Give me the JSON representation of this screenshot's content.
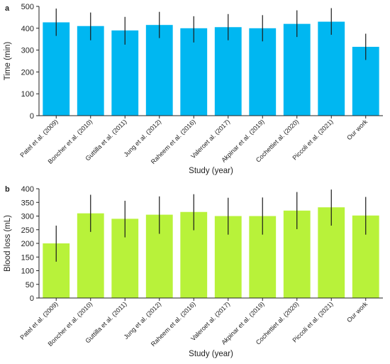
{
  "chart_data": [
    {
      "panel": "a",
      "type": "bar",
      "color": "#00b7f1",
      "categories": [
        "Patel et al. (2009)",
        "Boncher et al. (2010)",
        "Guttilla et al. (2011)",
        "Jung et al. (2012)",
        "Raheem et al. (2016)",
        "Valeroet al. (2017)",
        "Akpinar et al. (2019)",
        "Cochettiet al. (2020)",
        "Piccoli et al. (2021)",
        "Our work"
      ],
      "values": [
        427,
        410,
        390,
        415,
        400,
        405,
        400,
        420,
        430,
        315
      ],
      "error_low": [
        365,
        345,
        325,
        355,
        335,
        345,
        340,
        360,
        370,
        255
      ],
      "error_high": [
        490,
        472,
        452,
        475,
        455,
        465,
        460,
        482,
        492,
        375
      ],
      "xlabel": "Study (year)",
      "ylabel": "Time (min)",
      "ylim": [
        0,
        500
      ],
      "yticks": [
        0,
        100,
        200,
        300,
        400,
        500
      ]
    },
    {
      "panel": "b",
      "type": "bar",
      "color": "#b8f23a",
      "categories": [
        "Patel et al. (2009)",
        "Boncher et al. (2010)",
        "Guttilla et al. (2011)",
        "Jung et al. (2012)",
        "Raheem et al. (2016)",
        "Valeroet al. (2017)",
        "Akpinar et al. (2019)",
        "Cochettiet al. (2020)",
        "Piccoli et al. (2021)",
        "Our work"
      ],
      "values": [
        200,
        310,
        290,
        305,
        315,
        300,
        300,
        320,
        332,
        302
      ],
      "error_low": [
        133,
        242,
        222,
        235,
        248,
        232,
        232,
        252,
        265,
        232
      ],
      "error_high": [
        265,
        378,
        356,
        372,
        380,
        367,
        368,
        388,
        397,
        370
      ],
      "xlabel": "Study (year)",
      "ylabel": "Blood loss (mL)",
      "ylim": [
        0,
        400
      ],
      "yticks": [
        0,
        50,
        100,
        150,
        200,
        250,
        300,
        350,
        400
      ]
    }
  ]
}
